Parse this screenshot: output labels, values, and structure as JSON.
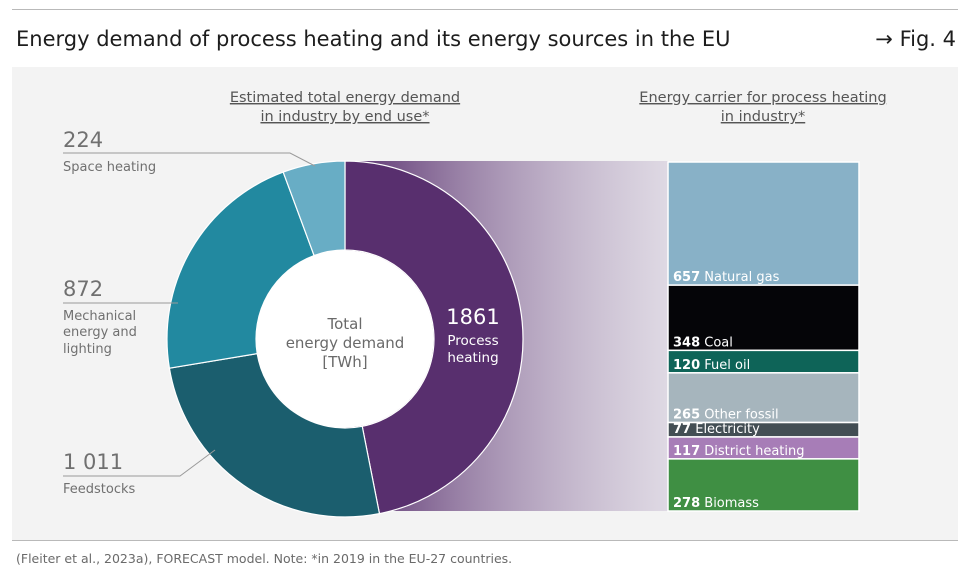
{
  "header": {
    "title": "Energy demand of process heating and its energy sources in the EU",
    "figure_ref": "→ Fig. 4"
  },
  "footnote": "(Fleiter et al., 2023a), FORECAST model. Note: *in 2019 in the EU-27 countries.",
  "chart_data": [
    {
      "type": "pie",
      "subtitle_lines": [
        "Estimated total energy demand",
        "in industry by end use*"
      ],
      "center_label_lines": [
        "Total",
        "energy demand",
        "[TWh]"
      ],
      "slices": [
        {
          "name_lines": [
            "Process",
            "heating"
          ],
          "value": 1861,
          "value_label": "1861",
          "color": "#582f6e"
        },
        {
          "name_lines": [
            "Feedstocks"
          ],
          "value": 1011,
          "value_label": "1 011",
          "color": "#1b5e6e"
        },
        {
          "name_lines": [
            "Mechanical",
            "energy and",
            "lighting"
          ],
          "value": 872,
          "value_label": "872",
          "color": "#2289a0"
        },
        {
          "name_lines": [
            "Space heating"
          ],
          "value": 224,
          "value_label": "224",
          "color": "#68adc5"
        }
      ]
    },
    {
      "type": "bar",
      "stacked": true,
      "subtitle_lines": [
        "Energy carrier for process heating",
        "in industry*"
      ],
      "segments": [
        {
          "name": "Natural gas",
          "value": 657,
          "value_label": "657",
          "color": "#88b1c7"
        },
        {
          "name": "Coal",
          "value": 348,
          "value_label": "348",
          "color": "#050508"
        },
        {
          "name": "Fuel oil",
          "value": 120,
          "value_label": "120",
          "color": "#0e6458"
        },
        {
          "name": "Other fossil",
          "value": 265,
          "value_label": "265",
          "color": "#a6b5bd"
        },
        {
          "name": "Electricity",
          "value": 77,
          "value_label": "77",
          "color": "#434e54"
        },
        {
          "name": "District heating",
          "value": 117,
          "value_label": "117",
          "color": "#a77db7"
        },
        {
          "name": "Biomass",
          "value": 278,
          "value_label": "278",
          "color": "#3f8f43"
        }
      ]
    }
  ]
}
